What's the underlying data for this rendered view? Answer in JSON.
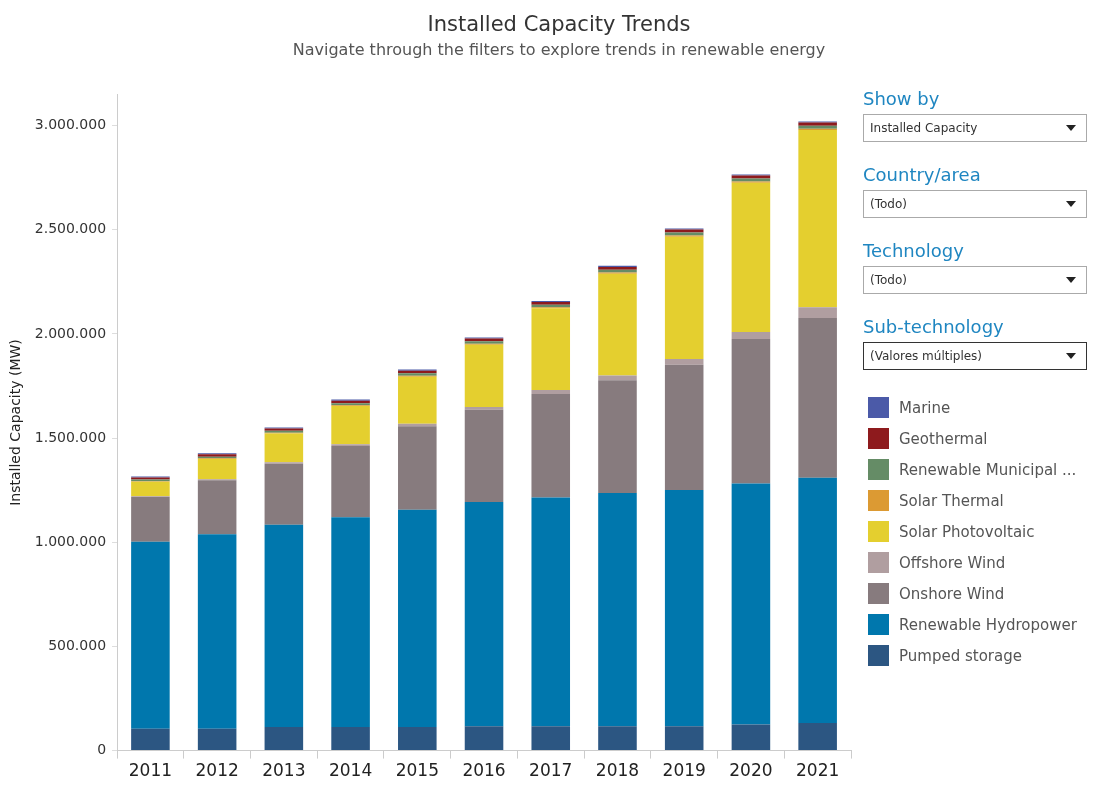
{
  "chart_data": {
    "type": "bar",
    "title": "Installed Capacity Trends",
    "subtitle": "Navigate through the filters to explore trends in renewable energy",
    "ylabel": "Installed Capacity (MW)",
    "categories": [
      "2011",
      "2012",
      "2013",
      "2014",
      "2015",
      "2016",
      "2017",
      "2018",
      "2019",
      "2020",
      "2021"
    ],
    "stacked": true,
    "grid": false,
    "legend": "right",
    "ylim": [
      0,
      3150000
    ],
    "yticks": [
      {
        "value": 0,
        "label": "0"
      },
      {
        "value": 500000,
        "label": "500.000"
      },
      {
        "value": 1000000,
        "label": "1.000.000"
      },
      {
        "value": 1500000,
        "label": "1.500.000"
      },
      {
        "value": 2000000,
        "label": "2.000.000"
      },
      {
        "value": 2500000,
        "label": "2.500.000"
      },
      {
        "value": 3000000,
        "label": "3.000.000"
      }
    ],
    "series": [
      {
        "name": "Pumped storage",
        "color": "#2c5682",
        "values": [
          105000,
          105000,
          113000,
          113000,
          113000,
          117000,
          117000,
          117000,
          117000,
          125000,
          133000
        ]
      },
      {
        "name": "Renewable Hydropower",
        "color": "#0077ad",
        "values": [
          898000,
          934000,
          971000,
          1007000,
          1043000,
          1076000,
          1098000,
          1120000,
          1134000,
          1157000,
          1177000
        ]
      },
      {
        "name": "Onshore Wind",
        "color": "#877b7e",
        "values": [
          214000,
          259000,
          293000,
          342000,
          401000,
          443000,
          497000,
          541000,
          601000,
          694000,
          767000
        ]
      },
      {
        "name": "Offshore Wind",
        "color": "#b09ea0",
        "values": [
          4000,
          5000,
          7000,
          9000,
          12000,
          14000,
          19000,
          23000,
          28000,
          34000,
          51000
        ]
      },
      {
        "name": "Solar Photovoltaic",
        "color": "#e4cf2f",
        "values": [
          70000,
          97000,
          138000,
          183000,
          226000,
          298000,
          392000,
          488000,
          587000,
          716000,
          851000
        ]
      },
      {
        "name": "Solar Thermal",
        "color": "#dc9a33",
        "values": [
          2000,
          3000,
          4000,
          4000,
          5000,
          5000,
          5000,
          6000,
          6000,
          6000,
          6000
        ]
      },
      {
        "name": "Renewable Municipal ...",
        "color": "#658c66",
        "values": [
          8000,
          8000,
          9000,
          10000,
          11000,
          12000,
          12000,
          13000,
          14000,
          14000,
          14000
        ]
      },
      {
        "name": "Geothermal",
        "color": "#8e1a1d",
        "values": [
          10000,
          11000,
          11000,
          12000,
          13000,
          13000,
          13000,
          14000,
          14000,
          15000,
          16000
        ]
      },
      {
        "name": "Marine",
        "color": "#4b5aa8",
        "values": [
          5000,
          5000,
          5000,
          5000,
          5000,
          5000,
          5000,
          5000,
          5000,
          5000,
          5000
        ]
      }
    ],
    "annotations": [
      "Show by",
      "Installed Capacity",
      "Country/area",
      "(Todo)",
      "Technology",
      "(Todo)",
      "Sub-technology",
      "(Valores múltiples)"
    ]
  }
}
